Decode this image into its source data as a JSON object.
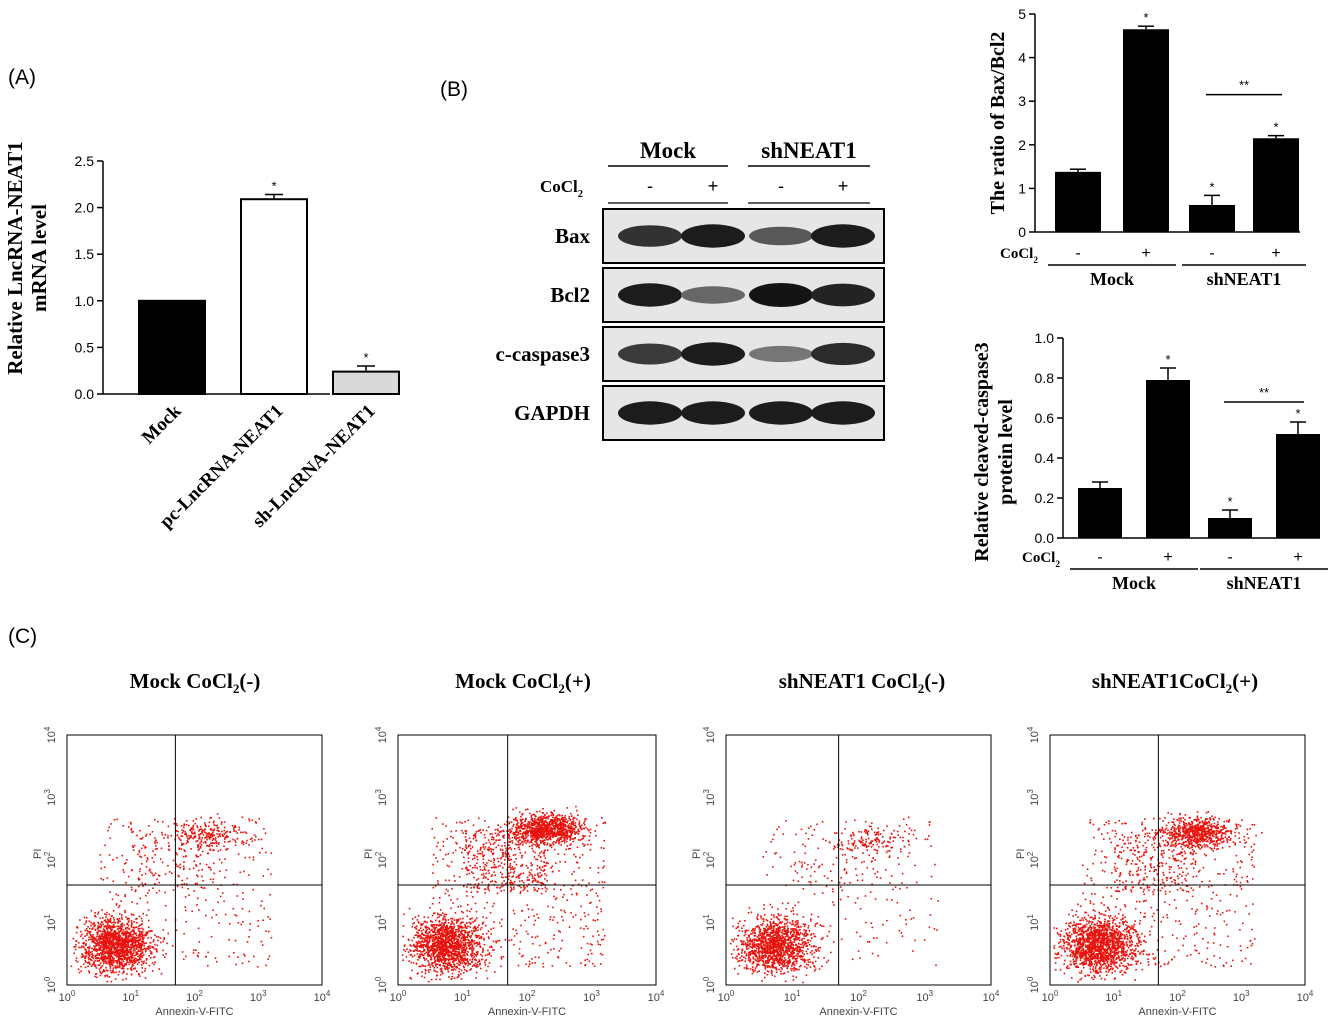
{
  "panel_labels": {
    "a": "(A)",
    "b": "(B)",
    "c": "(C)"
  },
  "colors": {
    "bar_dark": "#000000",
    "bar_white": "#ffffff",
    "bar_light": "#d9d9d9",
    "dots": "#e8120c"
  },
  "chart_data": [
    {
      "id": "panelA",
      "type": "bar",
      "title": "",
      "ylabel": "Relative LncRNA-NEAT1 mRNA level",
      "ylabel_lines": [
        "Relative LncRNA-NEAT1",
        "mRNA level"
      ],
      "categories": [
        "Mock",
        "pc-LncRNA-NEAT1",
        "sh-LncRNA-NEAT1"
      ],
      "values": [
        1.0,
        2.09,
        0.24
      ],
      "errors": [
        0,
        0.05,
        0.06
      ],
      "significance": [
        "",
        "*",
        "*"
      ],
      "fills": [
        "dark",
        "white",
        "light"
      ],
      "ylim": [
        0,
        2.5
      ],
      "yticks": [
        0.0,
        0.5,
        1.0,
        1.5,
        2.0,
        2.5
      ],
      "ytick_labels": [
        "0.0",
        "0.5",
        "1.0",
        "1.5",
        "2.0",
        "2.5"
      ]
    },
    {
      "id": "panelB1",
      "type": "bar",
      "ylabel": "The ratio of Bax/Bcl2",
      "treatment_label": "CoCl",
      "treatment_sub": "2",
      "treatment": [
        "-",
        "+",
        "-",
        "+"
      ],
      "groups": [
        "Mock",
        "shNEAT1"
      ],
      "values": [
        1.38,
        4.65,
        0.62,
        2.15
      ],
      "errors": [
        0.06,
        0.07,
        0.22,
        0.06
      ],
      "significance": [
        "",
        "*",
        "*",
        "*"
      ],
      "bracket": {
        "from": 2,
        "to": 3,
        "label": "**",
        "y": 3.15
      },
      "ylim": [
        0,
        5
      ],
      "yticks": [
        0,
        1,
        2,
        3,
        4,
        5
      ],
      "ytick_labels": [
        "0",
        "1",
        "2",
        "3",
        "4",
        "5"
      ]
    },
    {
      "id": "panelB2",
      "type": "bar",
      "ylabel": "Relative cleaved-caspase3 protein level",
      "ylabel_lines": [
        "Relative cleaved-caspase3",
        "protein level"
      ],
      "treatment_label": "CoCl",
      "treatment_sub": "2",
      "treatment": [
        "-",
        "+",
        "-",
        "+"
      ],
      "groups": [
        "Mock",
        "shNEAT1"
      ],
      "values": [
        0.25,
        0.79,
        0.1,
        0.52
      ],
      "errors": [
        0.03,
        0.06,
        0.04,
        0.06
      ],
      "significance": [
        "",
        "*",
        "*",
        "*"
      ],
      "bracket": {
        "from": 2,
        "to": 3,
        "label": "**",
        "y": 0.68
      },
      "ylim": [
        0,
        1.0
      ],
      "yticks": [
        0.0,
        0.2,
        0.4,
        0.6,
        0.8,
        1.0
      ],
      "ytick_labels": [
        "0.0",
        "0.2",
        "0.4",
        "0.6",
        "0.8",
        "1.0"
      ]
    },
    {
      "id": "flow",
      "type": "scatter",
      "xlabel": "Annexin-V-FITC",
      "ylabel": "PI",
      "axis_base": "10",
      "axis_exponents": [
        "0",
        "1",
        "2",
        "3",
        "4"
      ],
      "panels": [
        {
          "prefix": "Mock  CoCl",
          "sub": "2",
          "suffix": "(-)",
          "cluster_counts": [
            1500,
            220,
            120,
            300
          ],
          "upper_cluster": [
            2.2,
            2.4
          ]
        },
        {
          "prefix": "Mock  CoCl",
          "sub": "2",
          "suffix": "(+)",
          "cluster_counts": [
            1400,
            900,
            380,
            500
          ],
          "upper_cluster": [
            2.3,
            2.5
          ]
        },
        {
          "prefix": "shNEAT1 CoCl",
          "sub": "2",
          "suffix": "(-)",
          "cluster_counts": [
            1300,
            120,
            80,
            180
          ],
          "upper_cluster": [
            2.2,
            2.3
          ]
        },
        {
          "prefix": "shNEAT1CoCl",
          "sub": "2",
          "suffix": "(+)",
          "cluster_counts": [
            1500,
            650,
            240,
            420
          ],
          "upper_cluster": [
            2.3,
            2.45
          ]
        }
      ]
    }
  ],
  "blot": {
    "groups": [
      "Mock",
      "shNEAT1"
    ],
    "treatment_label": "CoCl",
    "treatment_sub": "2",
    "treatment": [
      "-",
      "+",
      "-",
      "+"
    ],
    "rows": [
      {
        "label": "Bax",
        "intensity": [
          0.8,
          0.95,
          0.55,
          0.95
        ]
      },
      {
        "label": "Bcl2",
        "intensity": [
          0.95,
          0.45,
          1.0,
          0.9
        ]
      },
      {
        "label": "c-caspase3",
        "intensity": [
          0.75,
          0.95,
          0.35,
          0.85
        ]
      },
      {
        "label": "GAPDH",
        "intensity": [
          0.95,
          0.95,
          0.95,
          0.95
        ]
      }
    ]
  }
}
